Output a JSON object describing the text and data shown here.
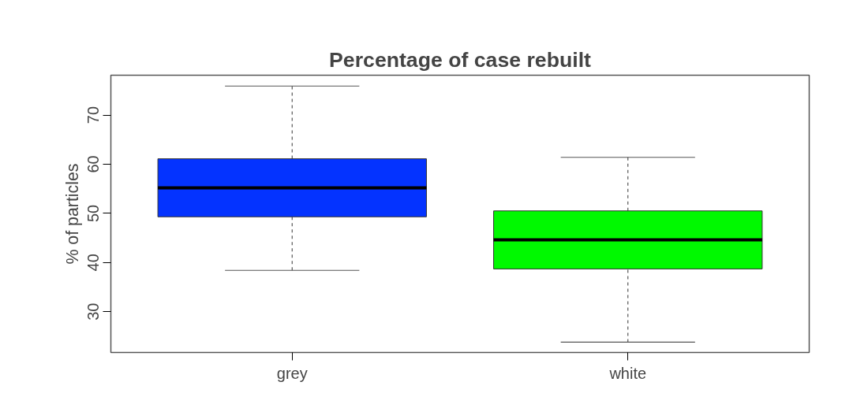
{
  "chart_data": {
    "type": "box",
    "title": "Percentage of case rebuilt",
    "ylabel": "% of particles",
    "categories": [
      "grey",
      "white"
    ],
    "colors": [
      "#0433ff",
      "#00f900"
    ],
    "boxes": [
      {
        "low": 38.4,
        "q1": 49.3,
        "median": 55.2,
        "q3": 61.1,
        "high": 75.9
      },
      {
        "low": 23.8,
        "q1": 38.7,
        "median": 44.6,
        "q3": 50.5,
        "high": 61.4
      }
    ],
    "ylim": [
      21.7,
      78.1
    ],
    "yticks": [
      30,
      40,
      50,
      60,
      70
    ]
  }
}
